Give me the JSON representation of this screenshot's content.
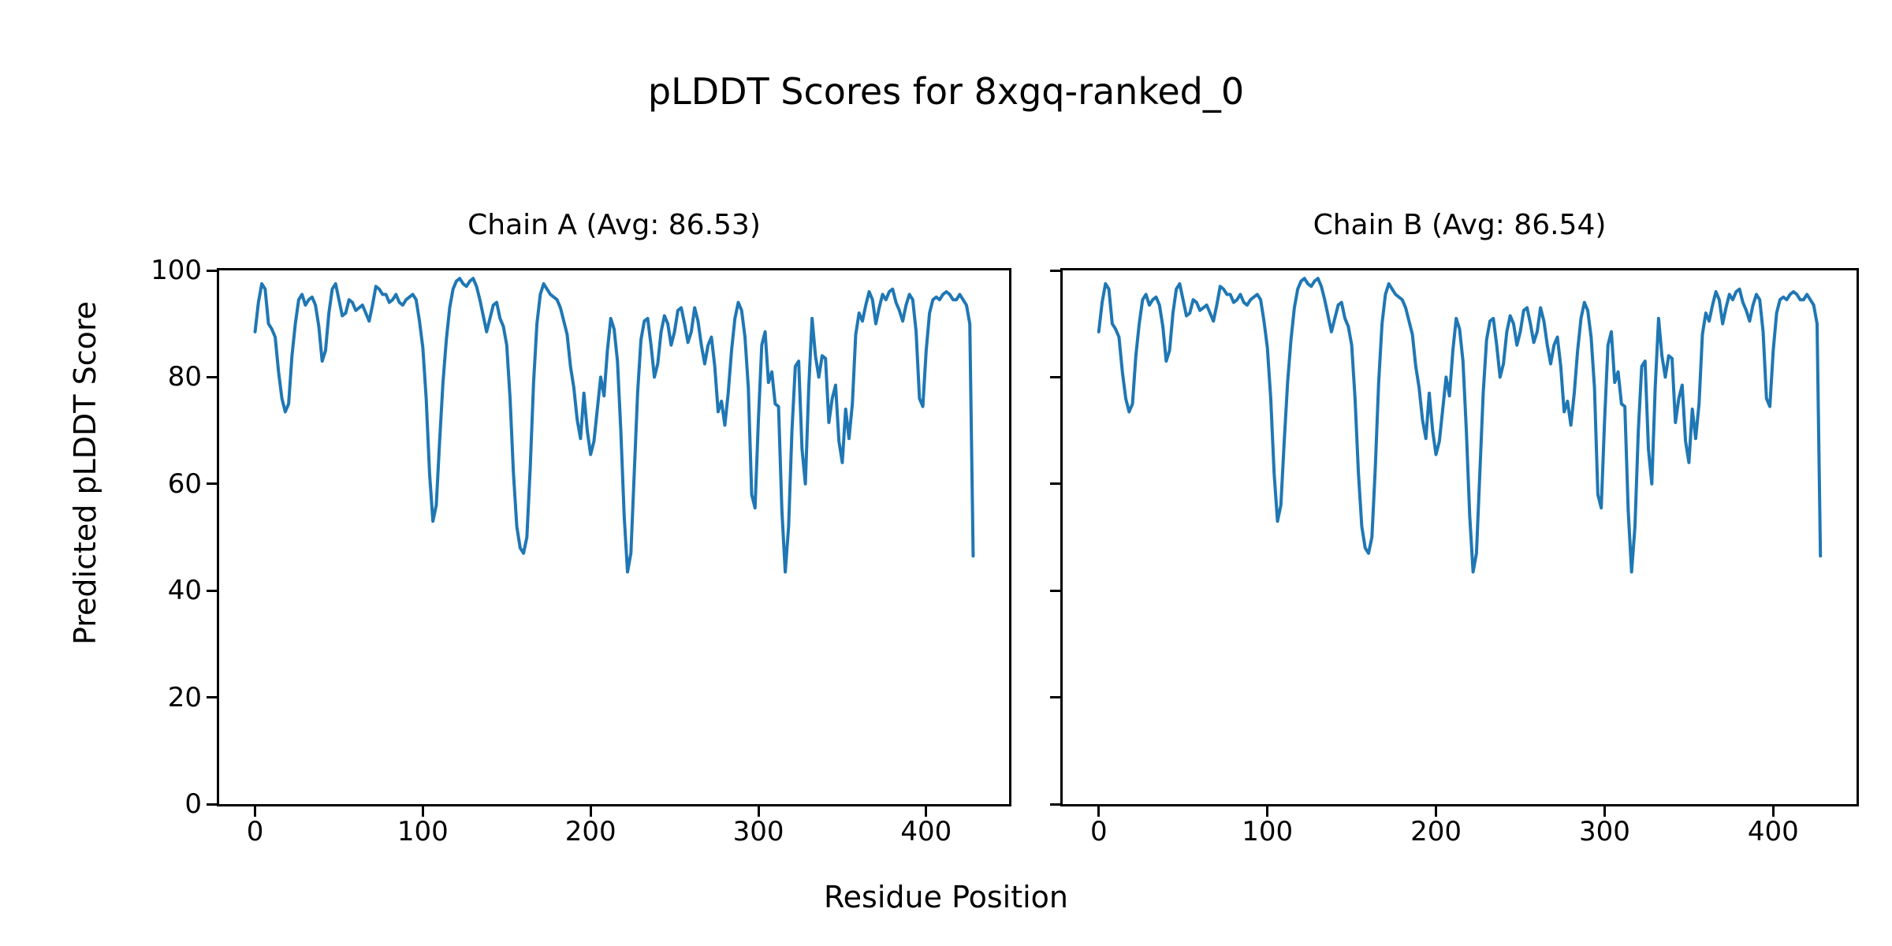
{
  "figure": {
    "title": "pLDDT Scores for 8xgq-ranked_0",
    "xlabel": "Residue Position",
    "ylabel": "Predicted pLDDT Score",
    "background_color": "#ffffff",
    "text_color": "#000000"
  },
  "chart_data": [
    {
      "type": "line",
      "title": "Chain A (Avg: 86.53)",
      "chain": "A",
      "avg_plddt": 86.53,
      "line_color": "#1f77b4",
      "xlim": [
        -21.4,
        449.4
      ],
      "ylim": [
        0,
        100
      ],
      "xticks": [
        0,
        100,
        200,
        300,
        400
      ],
      "yticks": [
        0,
        20,
        40,
        60,
        80,
        100
      ],
      "show_ytick_labels": true,
      "grid": false,
      "legend": "none",
      "x_start": 0,
      "x_step": 2,
      "values": [
        88.5,
        94,
        97.5,
        96.5,
        90,
        89,
        87.5,
        81,
        76,
        73.5,
        75,
        84,
        90,
        94.5,
        95.5,
        93.5,
        94.5,
        95,
        93.5,
        89.5,
        83,
        85,
        92,
        96.5,
        97.5,
        94.5,
        91.5,
        92,
        94.5,
        94,
        92.5,
        93,
        93.5,
        92,
        90.5,
        93.5,
        97,
        96.5,
        95.5,
        95.5,
        94,
        94.5,
        95.5,
        94,
        93.5,
        94.5,
        95,
        95.5,
        94.5,
        90.5,
        85.5,
        76,
        62,
        53,
        56,
        68,
        79,
        87,
        93,
        96.5,
        98,
        98.5,
        97.5,
        97,
        98,
        98.5,
        97,
        94.5,
        91.5,
        88.5,
        91,
        93.5,
        94,
        91,
        89.5,
        86,
        76,
        62,
        52,
        48,
        47,
        50,
        63,
        79,
        90,
        95.5,
        97.5,
        96.5,
        95.5,
        95,
        94.5,
        93,
        90.5,
        88,
        82,
        78,
        72,
        68.5,
        77,
        70,
        65.5,
        68,
        74,
        80,
        76.5,
        85,
        91,
        89,
        83,
        70,
        54,
        43.5,
        47,
        62,
        77,
        87,
        90.5,
        91,
        86,
        80,
        82.5,
        88.5,
        91.5,
        90,
        86,
        88.5,
        92.5,
        93,
        90,
        86.5,
        88.5,
        93,
        90.5,
        86,
        82.5,
        86,
        87.5,
        82,
        73.5,
        75.5,
        71,
        77,
        85,
        91,
        94,
        92.5,
        87.5,
        78,
        58,
        55.5,
        72,
        86,
        88.5,
        79,
        81,
        75,
        74.5,
        55,
        43.5,
        52,
        70,
        82,
        83,
        66.5,
        60,
        78,
        91,
        84,
        80,
        84,
        83.5,
        71.5,
        76,
        78.5,
        68,
        64,
        74,
        68.5,
        75,
        88,
        92,
        90.5,
        93.5,
        96,
        94.5,
        90,
        93,
        95.5,
        94.5,
        96,
        96.5,
        94,
        92.5,
        90.5,
        93.5,
        95.5,
        94.5,
        88.5,
        76,
        74.5,
        85,
        92,
        94.5,
        95,
        94.5,
        95.5,
        96,
        95.5,
        94.5,
        94.5,
        95.5,
        94.5,
        93.5,
        90,
        46.5
      ]
    },
    {
      "type": "line",
      "title": "Chain B (Avg: 86.54)",
      "chain": "B",
      "avg_plddt": 86.54,
      "line_color": "#1f77b4",
      "xlim": [
        -21.4,
        449.4
      ],
      "ylim": [
        0,
        100
      ],
      "xticks": [
        0,
        100,
        200,
        300,
        400
      ],
      "yticks": [
        0,
        20,
        40,
        60,
        80,
        100
      ],
      "show_ytick_labels": false,
      "grid": false,
      "legend": "none",
      "x_start": 0,
      "x_step": 2,
      "values": [
        88.5,
        94,
        97.5,
        96.5,
        90,
        89,
        87.5,
        81,
        76,
        73.5,
        75,
        84,
        90,
        94.5,
        95.5,
        93.5,
        94.5,
        95,
        93.5,
        89.5,
        83,
        85,
        92,
        96.5,
        97.5,
        94.5,
        91.5,
        92,
        94.5,
        94,
        92.5,
        93,
        93.5,
        92,
        90.5,
        93.5,
        97,
        96.5,
        95.5,
        95.5,
        94,
        94.5,
        95.5,
        94,
        93.5,
        94.5,
        95,
        95.5,
        94.5,
        90.5,
        85.5,
        76,
        62,
        53,
        56,
        68,
        79,
        87,
        93,
        96.5,
        98,
        98.5,
        97.5,
        97,
        98,
        98.5,
        97,
        94.5,
        91.5,
        88.5,
        91,
        93.5,
        94,
        91,
        89.5,
        86,
        76,
        62,
        52,
        48,
        47,
        50,
        63,
        79,
        90,
        95.5,
        97.5,
        96.5,
        95.5,
        95,
        94.5,
        93,
        90.5,
        88,
        82,
        78,
        72,
        68.5,
        77,
        70,
        65.5,
        68,
        74,
        80,
        76.5,
        85,
        91,
        89,
        83,
        70,
        54,
        43.5,
        47,
        62,
        77,
        87,
        90.5,
        91,
        86,
        80,
        82.5,
        88.5,
        91.5,
        90,
        86,
        88.5,
        92.5,
        93,
        90,
        86.5,
        88.5,
        93,
        90.5,
        86,
        82.5,
        86,
        87.5,
        82,
        73.5,
        75.5,
        71,
        77,
        85,
        91,
        94,
        92.5,
        87.5,
        78,
        58,
        55.5,
        72,
        86,
        88.5,
        79,
        81,
        75,
        74.5,
        55,
        43.5,
        52,
        70,
        82,
        83,
        66.5,
        60,
        78,
        91,
        84,
        80,
        84,
        83.5,
        71.5,
        76,
        78.5,
        68,
        64,
        74,
        68.5,
        75,
        88,
        92,
        90.5,
        93.5,
        96,
        94.5,
        90,
        93,
        95.5,
        94.5,
        96,
        96.5,
        94,
        92.5,
        90.5,
        93.5,
        95.5,
        94.5,
        88.5,
        76,
        74.5,
        85,
        92,
        94.5,
        95,
        94.5,
        95.5,
        96,
        95.5,
        94.5,
        94.5,
        95.5,
        94.5,
        93.5,
        90,
        46.5
      ]
    }
  ]
}
